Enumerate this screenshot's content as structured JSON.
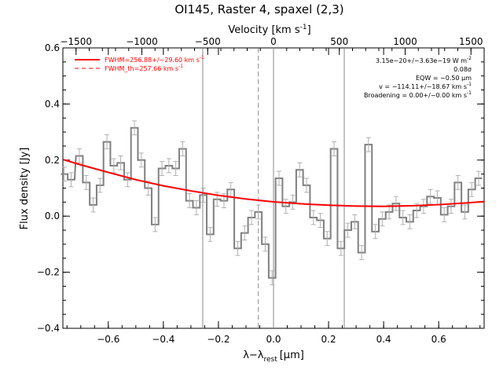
{
  "chart_data": {
    "type": "line",
    "title": "OI145, Raster 4, spaxel (2,3)",
    "xlabel": "λ−λ",
    "xlabel_sub": "rest",
    "xlabel_unit": "[μm]",
    "ylabel": "Flux density [Jy]",
    "top_axis_label": "Velocity [km s",
    "top_axis_label_sup": "-1",
    "top_axis_label_end": "]",
    "xlim": [
      -0.765,
      0.765
    ],
    "ylim": [
      -0.4,
      0.6
    ],
    "top_xlim": [
      -1600,
      1600
    ],
    "x_ticks": [
      -0.6,
      -0.4,
      -0.2,
      0.0,
      0.2,
      0.4,
      0.6
    ],
    "x_tick_labels": [
      "−0.6",
      "−0.4",
      "−0.2",
      "0.0",
      "0.2",
      "0.4",
      "0.6"
    ],
    "y_ticks": [
      -0.4,
      -0.2,
      0.0,
      0.2,
      0.4,
      0.6
    ],
    "y_tick_labels": [
      "−0.4",
      "−0.2",
      "0.0",
      "0.2",
      "0.4",
      "0.6"
    ],
    "top_ticks": [
      -1500,
      -1000,
      -500,
      0,
      500,
      1000,
      1500
    ],
    "top_tick_labels": [
      "−1500",
      "−1000",
      "−500",
      "0",
      "500",
      "1000",
      "1500"
    ],
    "vertical_lines": [
      {
        "x": -0.257,
        "style": "solid"
      },
      {
        "x": -0.055,
        "style": "dashed"
      },
      {
        "x": 0.0,
        "style": "solid"
      },
      {
        "x": 0.257,
        "style": "solid"
      }
    ],
    "series": [
      {
        "style": "step",
        "color": "#808080",
        "x": [
          -0.76,
          -0.735,
          -0.705,
          -0.68,
          -0.655,
          -0.63,
          -0.605,
          -0.58,
          -0.555,
          -0.53,
          -0.505,
          -0.48,
          -0.455,
          -0.43,
          -0.405,
          -0.38,
          -0.355,
          -0.33,
          -0.305,
          -0.28,
          -0.255,
          -0.23,
          -0.205,
          -0.18,
          -0.155,
          -0.13,
          -0.105,
          -0.08,
          -0.055,
          -0.03,
          -0.005,
          0.02,
          0.045,
          0.07,
          0.095,
          0.12,
          0.145,
          0.17,
          0.195,
          0.22,
          0.245,
          0.27,
          0.295,
          0.32,
          0.345,
          0.37,
          0.395,
          0.42,
          0.445,
          0.47,
          0.495,
          0.52,
          0.545,
          0.57,
          0.595,
          0.62,
          0.645,
          0.67,
          0.695,
          0.72,
          0.745
        ],
        "y": [
          0.15,
          0.13,
          0.215,
          0.12,
          0.04,
          0.11,
          0.265,
          0.18,
          0.19,
          0.13,
          0.315,
          0.2,
          0.1,
          -0.03,
          0.17,
          0.18,
          0.17,
          0.24,
          0.055,
          0.03,
          0.075,
          -0.065,
          0.06,
          0.055,
          0.095,
          -0.115,
          -0.06,
          -0.005,
          0.015,
          -0.1,
          -0.22,
          0.135,
          0.035,
          0.05,
          0.165,
          0.11,
          -0.005,
          -0.015,
          -0.08,
          0.24,
          -0.115,
          -0.05,
          -0.02,
          -0.13,
          0.255,
          -0.055,
          -0.01,
          0.015,
          0.045,
          -0.005,
          -0.02,
          0.02,
          0.035,
          0.07,
          0.065,
          0.005,
          0.035,
          0.12,
          0.015,
          0.095,
          0.135
        ],
        "errors": 0.025
      },
      {
        "name": "FWHM=256.88+/−29.60 km s",
        "style": "curve",
        "color": "#ff0000",
        "x": [
          -0.765,
          -0.7,
          -0.6,
          -0.5,
          -0.4,
          -0.3,
          -0.2,
          -0.1,
          0.0,
          0.1,
          0.2,
          0.3,
          0.4,
          0.5,
          0.6,
          0.7,
          0.765
        ],
        "y": [
          0.202,
          0.183,
          0.156,
          0.13,
          0.108,
          0.09,
          0.074,
          0.061,
          0.051,
          0.044,
          0.039,
          0.036,
          0.035,
          0.037,
          0.041,
          0.047,
          0.052
        ]
      }
    ],
    "legend": [
      {
        "label": "FWHM=256.88+/−29.60 km s",
        "sup": "-1",
        "color": "#ff0000",
        "dash": "solid"
      },
      {
        "label": "FWHM_th=257.66 km s",
        "sup": "-1",
        "color": "#ff0000",
        "dash": "dashed"
      }
    ],
    "annotations": [
      {
        "text": "3.15e−20+/−3.63e−19 W m",
        "sup": "-2"
      },
      {
        "text": "0.08σ",
        "sup": ""
      },
      {
        "text": "EQW = −0.50 μm",
        "sup": ""
      },
      {
        "text": "v = −114.11+/−18.67 km s",
        "sup": "-1"
      },
      {
        "text": "Broadening = 0.00+/−0.00 km s",
        "sup": "-1"
      }
    ]
  }
}
